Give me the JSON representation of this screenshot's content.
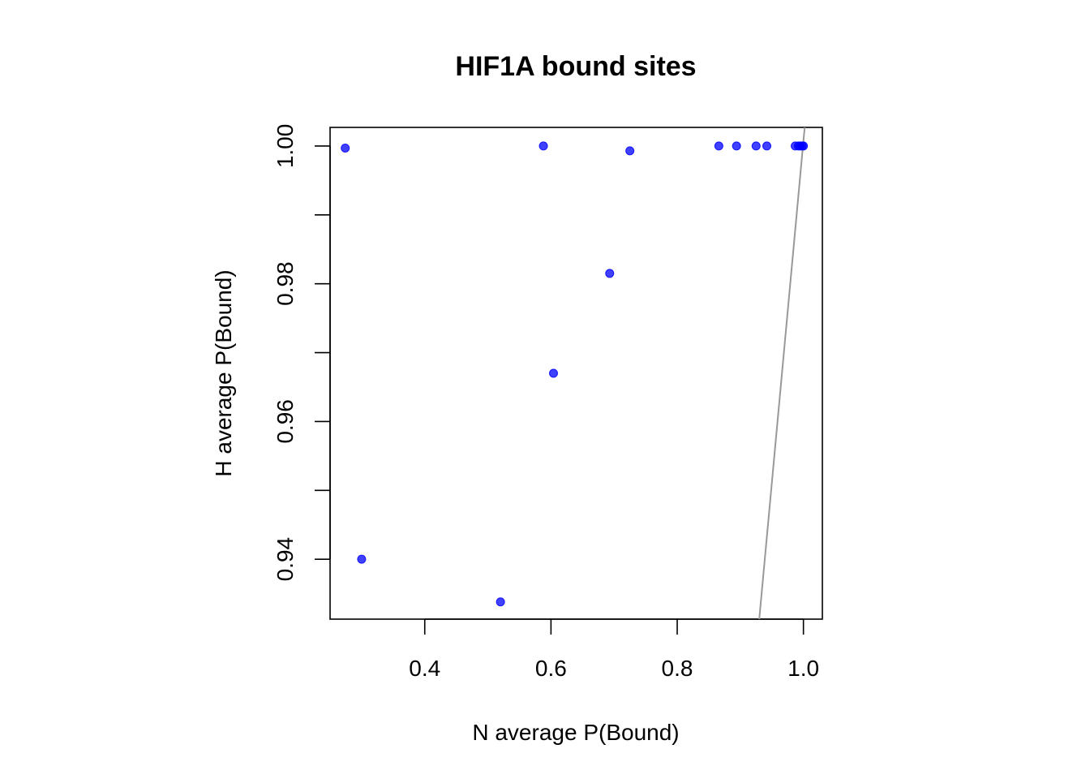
{
  "chart_data": {
    "type": "scatter",
    "title": "HIF1A bound sites",
    "xlabel": "N average P(Bound)",
    "ylabel": "H average P(Bound)",
    "xlim": [
      0.25,
      1.03
    ],
    "ylim": [
      0.9313,
      1.0027
    ],
    "xticks": [
      0.4,
      0.6,
      0.8,
      1.0
    ],
    "xtick_labels": [
      "0.4",
      "0.6",
      "0.8",
      "1.0"
    ],
    "yticks": [
      0.94,
      0.95,
      0.96,
      0.97,
      0.98,
      0.99,
      1.0
    ],
    "ytick_labels": [
      "0.94",
      "",
      "0.96",
      "",
      "0.98",
      "",
      "1.00"
    ],
    "grid": false,
    "legend": "none",
    "point_color": "#0000ff",
    "line_color": "#999999",
    "reference_line": {
      "from": [
        0.93,
        0.9313
      ],
      "to": [
        1.002,
        1.0027
      ]
    },
    "points": [
      {
        "x": 0.274,
        "y": 0.9997
      },
      {
        "x": 0.3,
        "y": 0.94
      },
      {
        "x": 0.52,
        "y": 0.9338
      },
      {
        "x": 0.588,
        "y": 1.0
      },
      {
        "x": 0.604,
        "y": 0.967
      },
      {
        "x": 0.693,
        "y": 0.9815
      },
      {
        "x": 0.725,
        "y": 0.9993
      },
      {
        "x": 0.866,
        "y": 1.0
      },
      {
        "x": 0.894,
        "y": 1.0
      },
      {
        "x": 0.925,
        "y": 1.0
      },
      {
        "x": 0.942,
        "y": 1.0
      },
      {
        "x": 0.987,
        "y": 1.0
      },
      {
        "x": 0.992,
        "y": 1.0
      },
      {
        "x": 0.995,
        "y": 1.0
      },
      {
        "x": 0.998,
        "y": 1.0
      },
      {
        "x": 1.0,
        "y": 1.0
      }
    ]
  }
}
